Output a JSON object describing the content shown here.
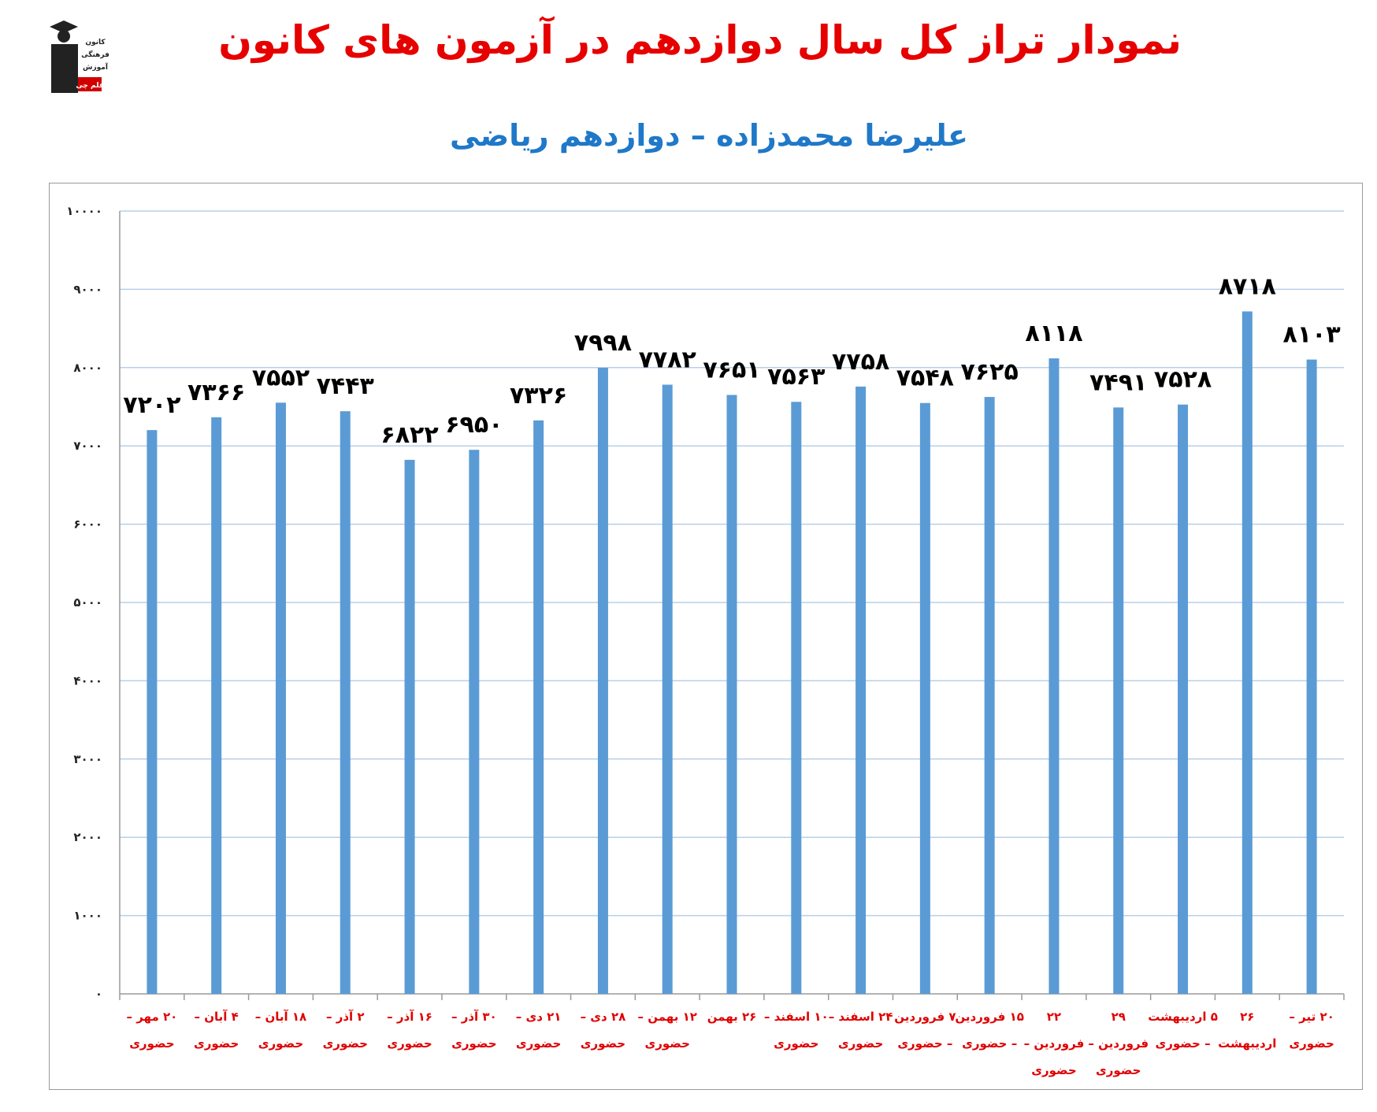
{
  "title": "نمودار تراز کل سال دوازدهم در آزمون های کانون",
  "subtitle": "علیرضا محمدزاده – دوازدهم ریاضی",
  "logo": {
    "lines": [
      "کانون",
      "فرهنگی",
      "آموزش"
    ],
    "badge": "قلم چی",
    "icon": "graduate-logo-icon"
  },
  "colors": {
    "title": "#e60000",
    "subtitle": "#1f78c8",
    "bar": "#5b9bd5",
    "grid": "#b8cfe8",
    "xtick": "#e00000"
  },
  "chart_data": {
    "type": "bar",
    "grid": true,
    "ylim": [
      0,
      10000
    ],
    "yticks": [
      {
        "value": 0,
        "label": "۰"
      },
      {
        "value": 1000,
        "label": "۱۰۰۰"
      },
      {
        "value": 2000,
        "label": "۲۰۰۰"
      },
      {
        "value": 3000,
        "label": "۳۰۰۰"
      },
      {
        "value": 4000,
        "label": "۴۰۰۰"
      },
      {
        "value": 5000,
        "label": "۵۰۰۰"
      },
      {
        "value": 6000,
        "label": "۶۰۰۰"
      },
      {
        "value": 7000,
        "label": "۷۰۰۰"
      },
      {
        "value": 8000,
        "label": "۸۰۰۰"
      },
      {
        "value": 9000,
        "label": "۹۰۰۰"
      },
      {
        "value": 10000,
        "label": "۱۰۰۰۰"
      }
    ],
    "categories": [
      [
        "۲۰ مهر –",
        "حضوری"
      ],
      [
        "۴ آبان –",
        "حضوری"
      ],
      [
        "۱۸ آبان –",
        "حضوری"
      ],
      [
        "۲ آذر –",
        "حضوری"
      ],
      [
        "۱۶ آذر –",
        "حضوری"
      ],
      [
        "۳۰ آذر –",
        "حضوری"
      ],
      [
        "۲۱ دی –",
        "حضوری"
      ],
      [
        "۲۸ دی –",
        "حضوری"
      ],
      [
        "۱۲ بهمن –",
        "حضوری"
      ],
      [
        "۲۶ بهمن"
      ],
      [
        "۱۰ اسفند –",
        "حضوری"
      ],
      [
        "۲۴ اسفند –",
        "حضوری"
      ],
      [
        "۷ فروردین",
        "– حضوری"
      ],
      [
        "۱۵ فروردین",
        "– حضوری"
      ],
      [
        "۲۲",
        "فروردین –",
        "حضوری"
      ],
      [
        "۲۹",
        "فروردین –",
        "حضوری"
      ],
      [
        "۵ اردیبهشت",
        "– حضوری"
      ],
      [
        "۲۶",
        "اردیبهشت"
      ],
      [
        "۲۰ تیر –",
        "حضوری"
      ]
    ],
    "values": [
      7202,
      7366,
      7552,
      7443,
      6822,
      6950,
      7326,
      7998,
      7782,
      7651,
      7563,
      7758,
      7548,
      7625,
      8118,
      7491,
      7528,
      8718,
      8103
    ],
    "data_labels": [
      "۷۲۰۲",
      "۷۳۶۶",
      "۷۵۵۲",
      "۷۴۴۳",
      "۶۸۲۲",
      "۶۹۵۰",
      "۷۳۲۶",
      "۷۹۹۸",
      "۷۷۸۲",
      "۷۶۵۱",
      "۷۵۶۳",
      "۷۷۵۸",
      "۷۵۴۸",
      "۷۶۲۵",
      "۸۱۱۸",
      "۷۴۹۱",
      "۷۵۲۸",
      "۸۷۱۸",
      "۸۱۰۳"
    ]
  }
}
